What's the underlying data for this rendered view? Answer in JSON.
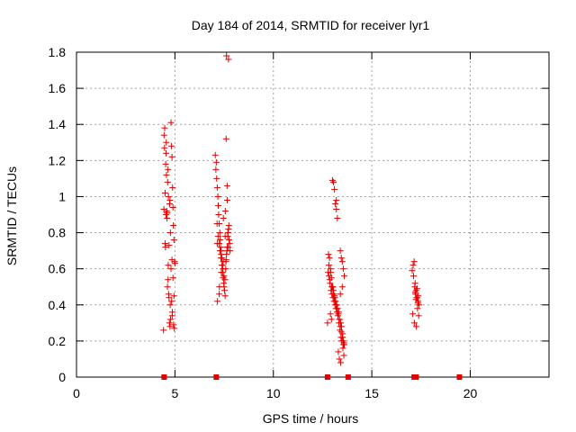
{
  "chart_data": {
    "type": "scatter",
    "title": "Day 184 of 2014, SRMTID for receiver lyr1",
    "xlabel": "GPS time / hours",
    "ylabel": "SRMTID / TECUs",
    "xlim": [
      0,
      24
    ],
    "ylim": [
      0,
      1.8
    ],
    "xticks": [
      0,
      5,
      10,
      15,
      20
    ],
    "yticks": [
      0,
      0.2,
      0.4,
      0.6,
      0.8,
      1,
      1.2,
      1.4,
      1.6,
      1.8
    ],
    "xtick_labels": [
      "0",
      "5",
      "10",
      "15",
      "20"
    ],
    "ytick_labels": [
      "0",
      "0.2",
      "0.4",
      "0.6",
      "0.8",
      "1",
      "1.2",
      "1.4",
      "1.6",
      "1.8"
    ],
    "grid": true,
    "marker": "+",
    "color": "#e00000",
    "series": [
      {
        "name": "SRMTID",
        "x": [
          4.42,
          4.45,
          4.48,
          4.5,
          4.52,
          4.55,
          4.58,
          4.6,
          4.62,
          4.65,
          4.68,
          4.7,
          4.72,
          4.75,
          4.78,
          4.8,
          4.82,
          4.85,
          4.88,
          4.9,
          4.92,
          4.95,
          4.98,
          5.0,
          4.47,
          4.53,
          4.57,
          4.63,
          4.67,
          4.73,
          4.77,
          4.83,
          4.87,
          4.93,
          4.97,
          4.5,
          4.6,
          4.7,
          4.8,
          4.9,
          4.55,
          4.65,
          4.75,
          4.85,
          4.95,
          4.44,
          4.56,
          4.66,
          4.76,
          4.86,
          7.05,
          7.1,
          7.12,
          7.15,
          7.18,
          7.2,
          7.22,
          7.25,
          7.28,
          7.3,
          7.32,
          7.35,
          7.38,
          7.4,
          7.42,
          7.45,
          7.48,
          7.5,
          7.52,
          7.55,
          7.58,
          7.6,
          7.62,
          7.65,
          7.68,
          7.7,
          7.72,
          7.75,
          7.78,
          7.8,
          7.08,
          7.14,
          7.19,
          7.24,
          7.29,
          7.34,
          7.39,
          7.44,
          7.49,
          7.54,
          7.59,
          7.64,
          7.69,
          7.74,
          7.16,
          7.26,
          7.36,
          7.46,
          7.56,
          7.66,
          7.6,
          7.65,
          7.7,
          7.62,
          7.72,
          7.25,
          7.45,
          7.55,
          7.35,
          7.15,
          12.75,
          12.8,
          12.85,
          12.9,
          12.95,
          13.0,
          13.05,
          13.1,
          13.15,
          13.2,
          13.25,
          13.3,
          13.35,
          13.4,
          13.45,
          13.5,
          13.55,
          13.6,
          12.78,
          12.83,
          12.88,
          12.93,
          12.98,
          13.03,
          13.08,
          13.13,
          13.18,
          13.23,
          13.28,
          13.33,
          13.38,
          13.43,
          13.48,
          13.53,
          13.58,
          12.82,
          12.92,
          13.02,
          13.12,
          13.22,
          13.32,
          13.42,
          13.52,
          12.86,
          12.96,
          13.06,
          13.16,
          13.26,
          13.36,
          13.46,
          13.56,
          13.0,
          13.05,
          13.1,
          13.15,
          13.2,
          13.25,
          13.4,
          13.45,
          13.5,
          13.55,
          13.6,
          13.3,
          13.35,
          13.42,
          13.48,
          13.52,
          13.58,
          12.9,
          12.95,
          13.2,
          13.4,
          13.5,
          17.05,
          17.1,
          17.15,
          17.2,
          17.25,
          17.3,
          17.35,
          17.4,
          17.12,
          17.18,
          17.22,
          17.28,
          17.32,
          17.38,
          17.08,
          17.16,
          17.26,
          17.36,
          17.2,
          17.3,
          17.24,
          17.34
        ],
        "y": [
          0.26,
          1.34,
          1.38,
          0.74,
          0.72,
          0.9,
          0.92,
          0.88,
          0.5,
          0.54,
          0.46,
          0.44,
          0.3,
          0.28,
          0.32,
          1.41,
          1.28,
          1.22,
          1.05,
          0.94,
          0.84,
          0.76,
          0.64,
          0.63,
          1.27,
          1.18,
          1.12,
          1.08,
          1.0,
          0.96,
          0.8,
          0.42,
          0.36,
          0.29,
          0.27,
          1.02,
          0.91,
          0.73,
          0.6,
          0.55,
          1.24,
          1.15,
          0.98,
          0.65,
          0.45,
          0.93,
          1.3,
          0.62,
          0.4,
          0.34,
          1.23,
          1.19,
          1.1,
          1.05,
          1.0,
          0.95,
          0.9,
          0.85,
          0.8,
          0.76,
          0.72,
          0.7,
          0.66,
          0.62,
          0.58,
          0.55,
          0.52,
          0.5,
          0.48,
          0.45,
          0.6,
          0.65,
          0.68,
          0.72,
          0.78,
          0.8,
          0.82,
          0.76,
          0.74,
          0.7,
          1.15,
          0.85,
          0.78,
          0.74,
          0.7,
          0.66,
          0.62,
          0.6,
          0.56,
          0.54,
          0.64,
          0.7,
          0.8,
          0.84,
          0.42,
          0.5,
          0.58,
          0.88,
          0.92,
          0.98,
          1.32,
          1.06,
          0.72,
          1.78,
          1.76,
          0.46,
          0.64,
          0.78,
          0.68,
          0.74,
          0.3,
          0.68,
          0.66,
          0.6,
          0.55,
          0.5,
          0.48,
          0.45,
          0.42,
          0.4,
          0.38,
          0.35,
          0.32,
          0.28,
          0.25,
          0.22,
          0.2,
          0.18,
          0.58,
          0.56,
          0.52,
          0.48,
          0.46,
          0.44,
          0.42,
          0.4,
          0.38,
          0.36,
          0.34,
          0.3,
          0.26,
          0.22,
          0.2,
          0.16,
          0.12,
          0.62,
          0.58,
          0.5,
          0.44,
          0.4,
          0.36,
          0.3,
          0.24,
          0.54,
          0.5,
          0.46,
          0.42,
          0.38,
          0.32,
          0.28,
          0.18,
          1.09,
          1.08,
          1.04,
          0.96,
          0.93,
          0.88,
          0.7,
          0.66,
          0.64,
          0.6,
          0.56,
          0.14,
          0.1,
          0.08,
          0.2,
          0.22,
          0.19,
          0.35,
          0.32,
          0.98,
          0.46,
          0.5,
          0.59,
          0.62,
          0.64,
          0.52,
          0.48,
          0.44,
          0.42,
          0.4,
          0.56,
          0.5,
          0.46,
          0.44,
          0.38,
          0.34,
          0.35,
          0.3,
          0.28,
          0.45,
          0.47,
          0.49,
          0.43,
          0.41
        ]
      }
    ],
    "markers_on_axis": [
      4.45,
      7.1,
      12.75,
      13.8,
      17.15,
      17.25,
      19.45
    ]
  }
}
